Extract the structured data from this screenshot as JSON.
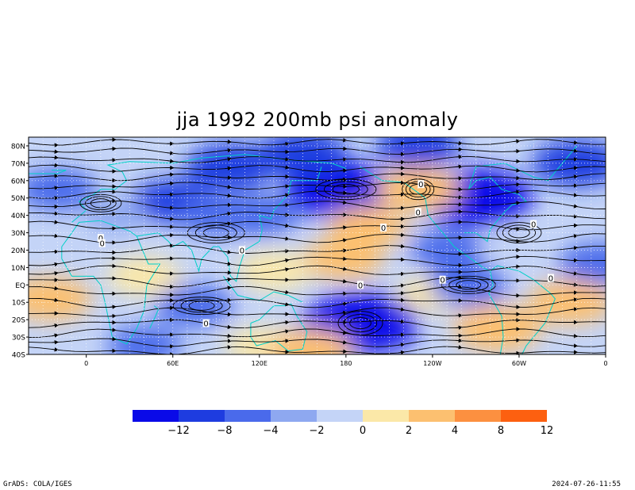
{
  "title": "jja 1992 200mb psi anomaly",
  "footer": {
    "left": "GrADS: COLA/IGES",
    "right": "2024-07-26-11:55"
  },
  "map": {
    "lon_range": [
      -40,
      360
    ],
    "lat_range": [
      -40,
      85
    ],
    "y_axis": {
      "ticks": [
        {
          "lat": 80,
          "label": "80N"
        },
        {
          "lat": 70,
          "label": "70N"
        },
        {
          "lat": 60,
          "label": "60N"
        },
        {
          "lat": 50,
          "label": "50N"
        },
        {
          "lat": 40,
          "label": "40N"
        },
        {
          "lat": 30,
          "label": "30N"
        },
        {
          "lat": 20,
          "label": "20N"
        },
        {
          "lat": 10,
          "label": "10N"
        },
        {
          "lat": 0,
          "label": "EQ"
        },
        {
          "lat": -10,
          "label": "10S"
        },
        {
          "lat": -20,
          "label": "20S"
        },
        {
          "lat": -30,
          "label": "30S"
        },
        {
          "lat": -40,
          "label": "40S"
        }
      ]
    },
    "x_axis": {
      "ticks": [
        {
          "lon": 0,
          "label": "0"
        },
        {
          "lon": 60,
          "label": "60E"
        },
        {
          "lon": 120,
          "label": "120E"
        },
        {
          "lon": 180,
          "label": "180"
        },
        {
          "lon": 240,
          "label": "120W"
        },
        {
          "lon": 300,
          "label": "60W"
        },
        {
          "lon": 360,
          "label": "0"
        }
      ]
    },
    "contour_labels": [
      {
        "lon": 10,
        "lat": 27,
        "text": "0"
      },
      {
        "lon": 11,
        "lat": 24,
        "text": "0"
      },
      {
        "lon": 108,
        "lat": 20,
        "text": "0"
      },
      {
        "lon": 206,
        "lat": 33,
        "text": "0"
      },
      {
        "lon": 230,
        "lat": 42,
        "text": "0"
      },
      {
        "lon": 232,
        "lat": 58,
        "text": "0"
      },
      {
        "lon": 190,
        "lat": 0,
        "text": "0"
      },
      {
        "lon": 83,
        "lat": -22,
        "text": "0"
      },
      {
        "lon": 247,
        "lat": 3,
        "text": "0"
      },
      {
        "lon": 310,
        "lat": 35,
        "text": "0"
      },
      {
        "lon": 322,
        "lat": 4,
        "text": "0"
      }
    ],
    "anomaly_fields": [
      {
        "lon": 60,
        "lat": 48,
        "value": -5
      },
      {
        "lon": -20,
        "lat": 55,
        "value": -4
      },
      {
        "lon": 100,
        "lat": 68,
        "value": -6
      },
      {
        "lon": 175,
        "lat": 55,
        "value": -10
      },
      {
        "lon": 270,
        "lat": 50,
        "value": -11
      },
      {
        "lon": 340,
        "lat": 70,
        "value": -6
      },
      {
        "lon": 150,
        "lat": 75,
        "value": -6
      },
      {
        "lon": 230,
        "lat": 80,
        "value": -5
      },
      {
        "lon": 195,
        "lat": 33,
        "value": 4
      },
      {
        "lon": 230,
        "lat": 55,
        "value": 5
      },
      {
        "lon": 20,
        "lat": 40,
        "value": -1
      },
      {
        "lon": 90,
        "lat": 40,
        "value": -4
      },
      {
        "lon": 120,
        "lat": 40,
        "value": -4
      },
      {
        "lon": 250,
        "lat": 20,
        "value": -3
      },
      {
        "lon": 295,
        "lat": 22,
        "value": 0
      },
      {
        "lon": 355,
        "lat": 12,
        "value": -4
      },
      {
        "lon": 178,
        "lat": 15,
        "value": 4
      },
      {
        "lon": 130,
        "lat": 8,
        "value": 3
      },
      {
        "lon": 40,
        "lat": 5,
        "value": 3
      },
      {
        "lon": -25,
        "lat": -8,
        "value": 5
      },
      {
        "lon": 75,
        "lat": -12,
        "value": -4
      },
      {
        "lon": 190,
        "lat": -22,
        "value": -12
      },
      {
        "lon": 240,
        "lat": -5,
        "value": 2
      },
      {
        "lon": 265,
        "lat": 0,
        "value": -4
      },
      {
        "lon": 285,
        "lat": -25,
        "value": 6
      },
      {
        "lon": 335,
        "lat": -10,
        "value": 5
      },
      {
        "lon": 120,
        "lat": -35,
        "value": 2
      },
      {
        "lon": 155,
        "lat": -38,
        "value": 5
      },
      {
        "lon": 40,
        "lat": -35,
        "value": -3
      }
    ],
    "colorbar": {
      "levels": [
        -12,
        -8,
        -4,
        -2,
        0,
        2,
        4,
        8,
        12
      ],
      "tick_labels": [
        "−12",
        "−8",
        "−4",
        "−2",
        "0",
        "2",
        "4",
        "8",
        "12"
      ],
      "colors": [
        "#0a0ae8",
        "#1e3ce0",
        "#4a6aeb",
        "#8ea8f0",
        "#c4d4f7",
        "#fbe8a8",
        "#fcc070",
        "#fc9040",
        "#fd6010"
      ]
    },
    "colors": {
      "coastline": "#00d0c8",
      "streamline": "#000000",
      "grid": "#ffffff"
    }
  }
}
